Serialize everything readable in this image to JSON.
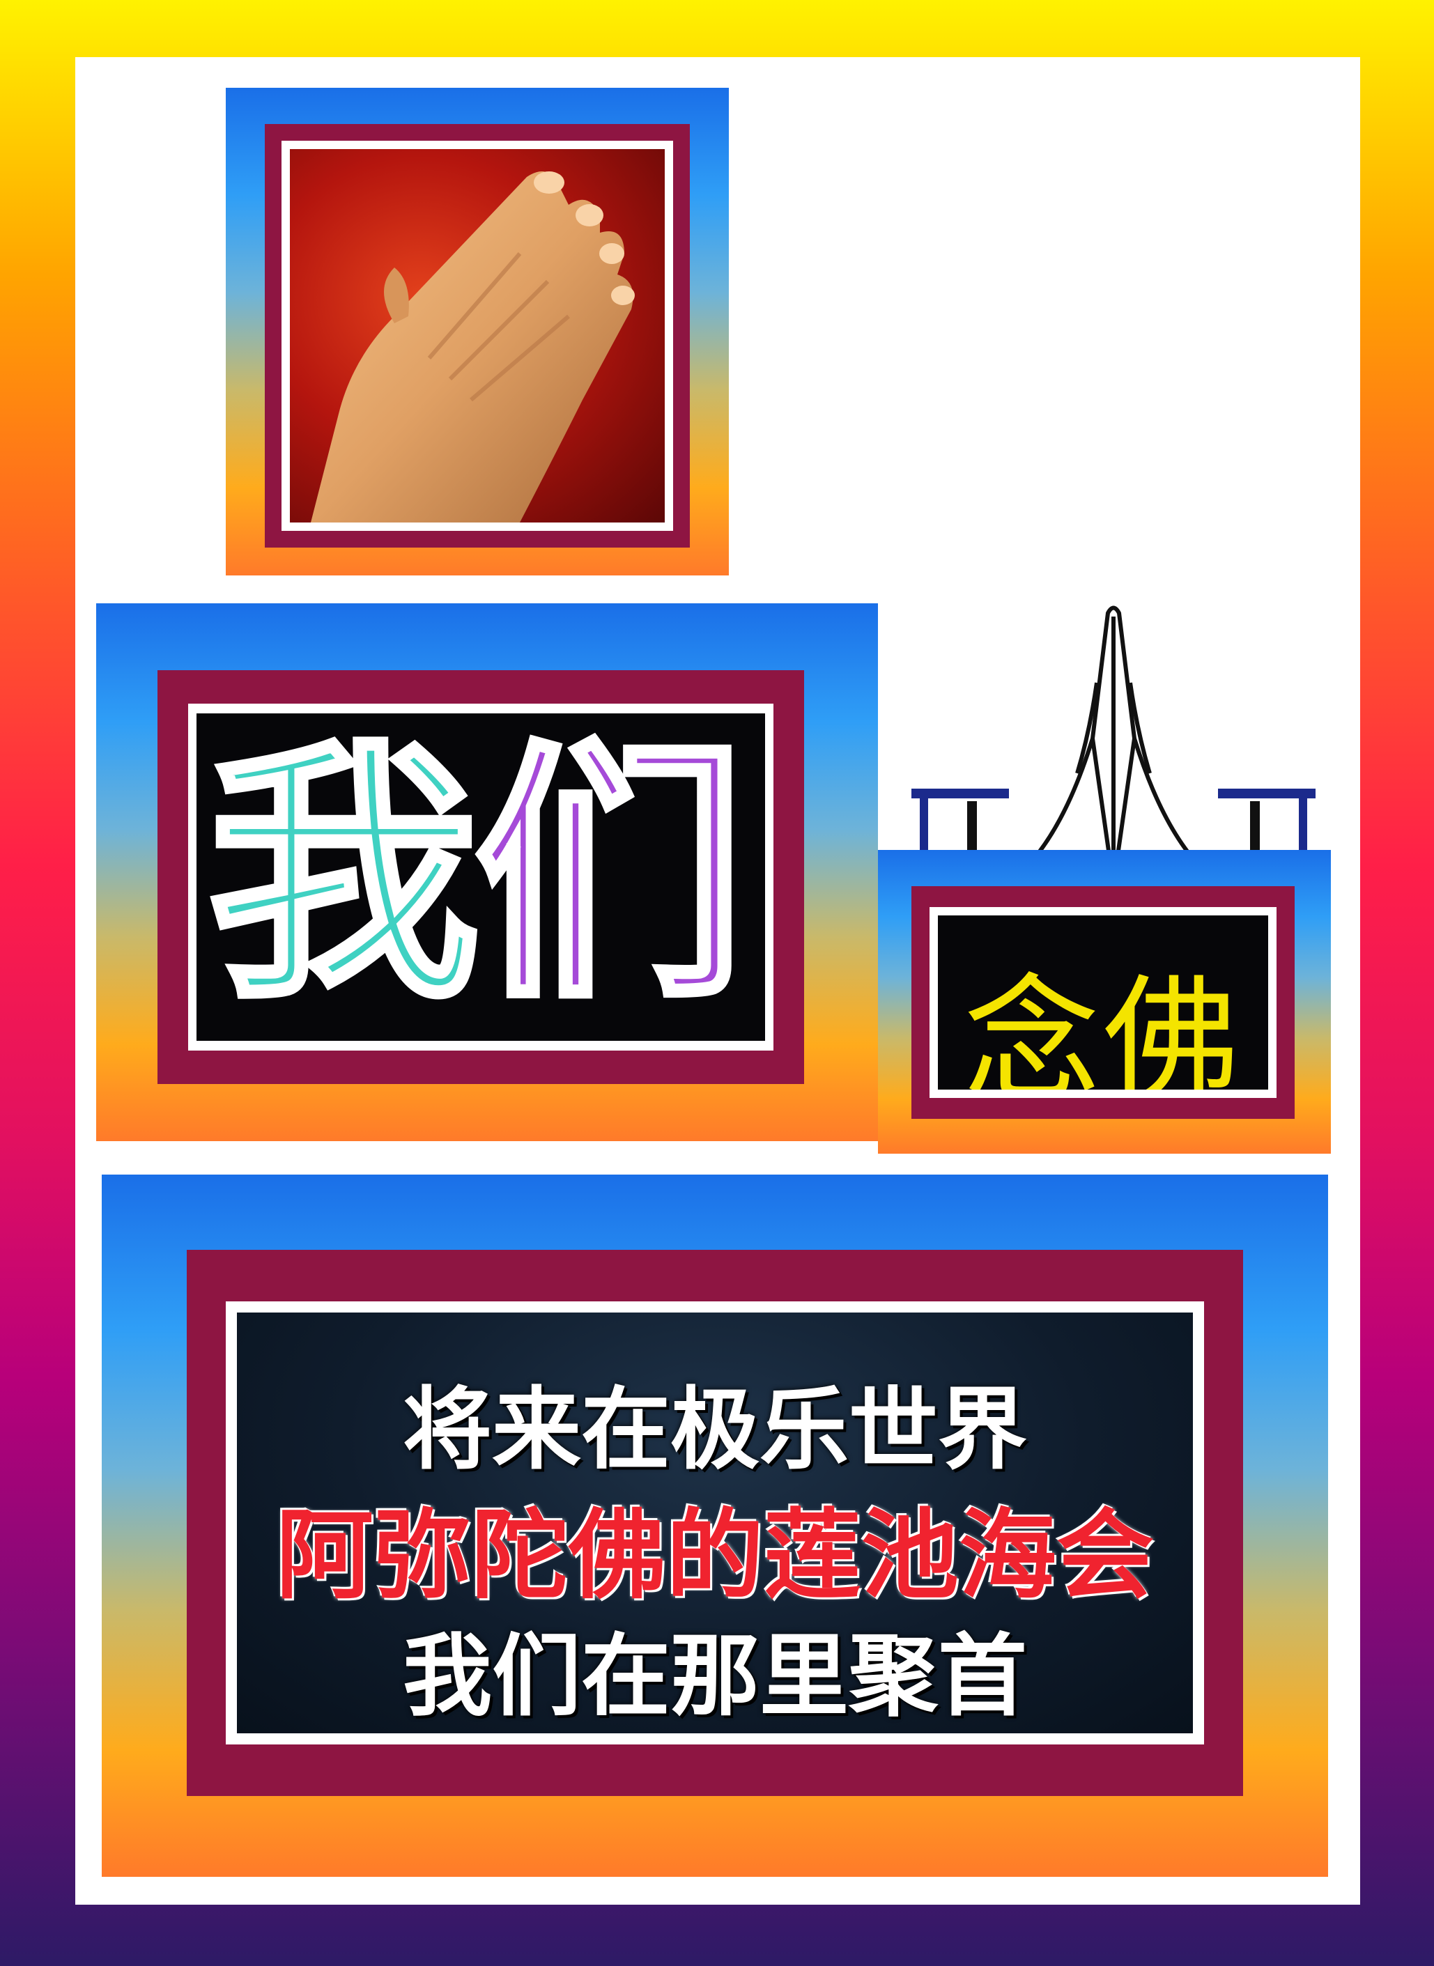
{
  "hero": {
    "title_chars": [
      "我",
      "们"
    ],
    "chant": "念佛"
  },
  "message": {
    "line1": "将来在极乐世界",
    "line2": "阿弥陀佛的莲池海会",
    "line3": "我们在那里聚首"
  },
  "colors": {
    "title_char_1": "#3fd1c2",
    "title_char_2": "#a54ad8",
    "chant": "#f4e400",
    "line_white": "#ffffff",
    "line_red": "#f0232f",
    "frame_maroon": "#8e1542"
  }
}
